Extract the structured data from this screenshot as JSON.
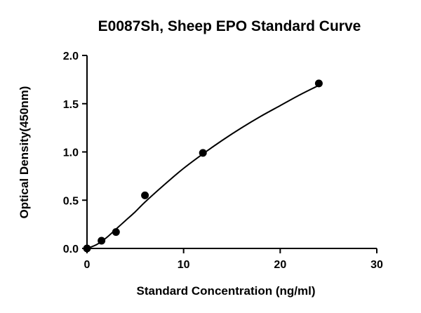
{
  "chart_data": {
    "type": "scatter",
    "title": "E0087Sh, Sheep EPO Standard Curve",
    "xlabel": "Standard Concentration (ng/ml)",
    "ylabel": "Optical Density(450nm)",
    "xlim": [
      0,
      30
    ],
    "ylim": [
      0,
      2.0
    ],
    "x_ticks": [
      0,
      10,
      20,
      30
    ],
    "x_tick_labels": [
      "0",
      "10",
      "20",
      "30"
    ],
    "y_ticks": [
      0,
      0.5,
      1.0,
      1.5,
      2.0
    ],
    "y_tick_labels": [
      "0.0",
      "0.5",
      "1.0",
      "1.5",
      "2.0"
    ],
    "grid": false,
    "points": [
      {
        "x": 0,
        "y": 0.0
      },
      {
        "x": 1.5,
        "y": 0.08
      },
      {
        "x": 3,
        "y": 0.17
      },
      {
        "x": 6,
        "y": 0.55
      },
      {
        "x": 12,
        "y": 0.99
      },
      {
        "x": 24,
        "y": 1.71
      }
    ],
    "fit_curve": {
      "x": [
        0,
        1,
        2,
        3,
        4,
        5,
        6,
        8,
        10,
        12,
        14,
        16,
        18,
        20,
        22,
        24
      ],
      "y": [
        0.0,
        0.04,
        0.11,
        0.2,
        0.29,
        0.38,
        0.48,
        0.66,
        0.83,
        0.98,
        1.12,
        1.25,
        1.37,
        1.48,
        1.59,
        1.69
      ]
    }
  }
}
